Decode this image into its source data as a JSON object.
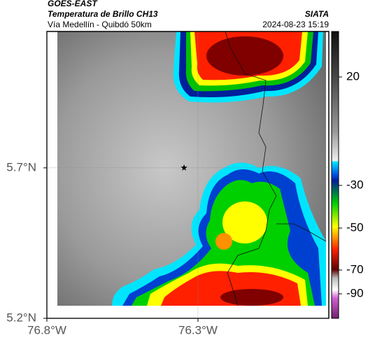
{
  "header": {
    "title": "GOES-EAST",
    "subtitle": "Temperatura de Brillo CH13",
    "region": "Vía Medellín - Quibdó 50km",
    "source": "SIATA",
    "timestamp": "2024-08-23 15:19"
  },
  "map": {
    "xlim": [
      -76.8,
      -75.867
    ],
    "ylim": [
      5.2,
      6.153
    ],
    "xticks": [
      {
        "value": -76.8,
        "label": "76.8°W"
      },
      {
        "value": -76.3,
        "label": "76.3°W"
      }
    ],
    "yticks": [
      {
        "value": 5.2,
        "label": "5.2°N"
      },
      {
        "value": 5.7,
        "label": "5.7°N"
      }
    ],
    "marker": {
      "lon": -76.346,
      "lat": 5.7
    }
  },
  "colorbar": {
    "ticks": [
      20,
      -30,
      -50,
      -70,
      -90
    ]
  }
}
